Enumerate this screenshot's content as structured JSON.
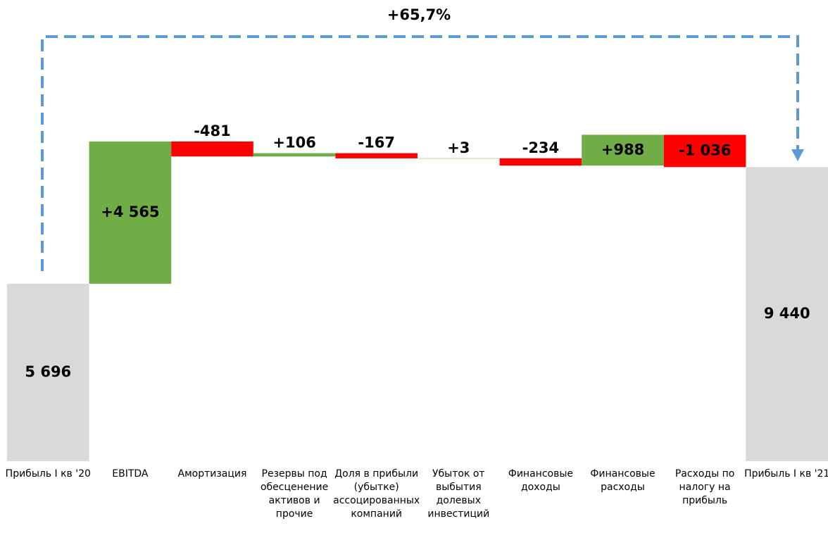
{
  "chart_data": {
    "type": "waterfall",
    "annotation": "+65,7%",
    "categories": [
      "Прибыль I кв '20",
      "EBITDA",
      "Амортизация",
      "Резервы под обесценение активов и прочие",
      "Доля в прибыли (убытке) ассоцированных компаний",
      "Убыток от выбытия долевых инвестиций",
      "Финансовые доходы",
      "Финансовые расходы",
      "Расходы по налогу на прибыль",
      "Прибыль I кв '21"
    ],
    "values": [
      5696,
      4565,
      -481,
      106,
      -167,
      3,
      -234,
      988,
      -1036,
      9440
    ],
    "value_labels": [
      "5 696",
      "+4 565",
      "-481",
      "+106",
      "-167",
      "+3",
      "-234",
      "+988",
      "-1 036",
      "9 440"
    ],
    "measure": [
      "total",
      "relative",
      "relative",
      "relative",
      "relative",
      "relative",
      "relative",
      "relative",
      "relative",
      "total"
    ],
    "total_color": "#d9d9d9",
    "increase_color": "#70ad47",
    "decrease_color": "#ff0000",
    "connector_color": "#5b9bd5"
  }
}
